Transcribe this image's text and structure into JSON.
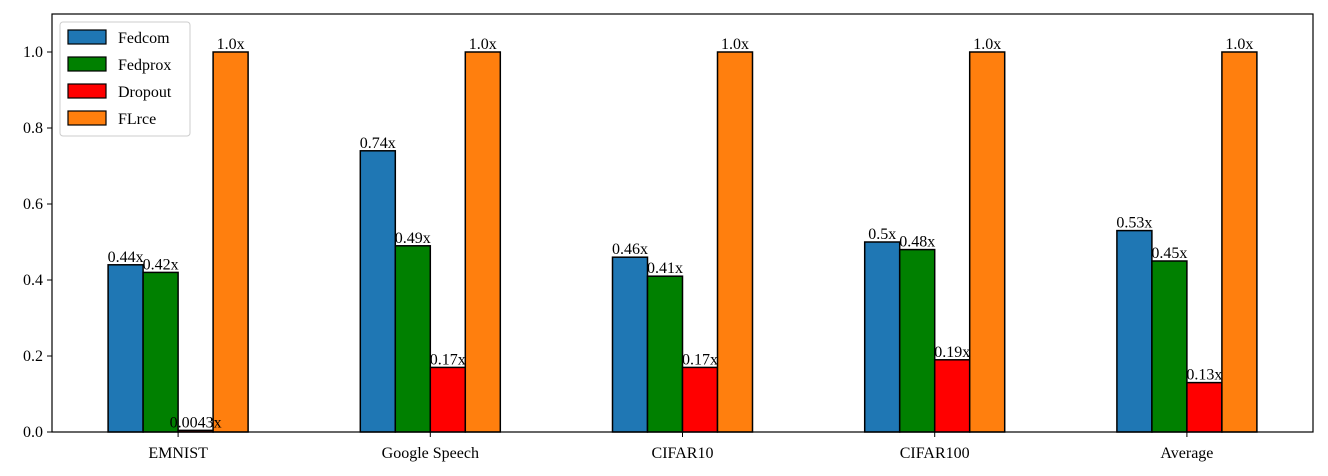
{
  "chart_data": {
    "type": "bar",
    "title": "",
    "xlabel": "",
    "ylabel": "",
    "ylim": [
      0,
      1.1
    ],
    "yticks": [
      0.0,
      0.2,
      0.4,
      0.6,
      0.8,
      1.0
    ],
    "ytick_labels": [
      "0.0",
      "0.2",
      "0.4",
      "0.6",
      "0.8",
      "1.0"
    ],
    "categories": [
      "EMNIST",
      "Google Speech",
      "CIFAR10",
      "CIFAR100",
      "Average"
    ],
    "legend_position": "top-left",
    "series": [
      {
        "name": "Fedcom",
        "color": "#1f77b4",
        "values": [
          0.44,
          0.74,
          0.46,
          0.5,
          0.53
        ],
        "labels": [
          "0.44x",
          "0.74x",
          "0.46x",
          "0.5x",
          "0.53x"
        ]
      },
      {
        "name": "Fedprox",
        "color": "#008000",
        "values": [
          0.42,
          0.49,
          0.41,
          0.48,
          0.45
        ],
        "labels": [
          "0.42x",
          "0.49x",
          "0.41x",
          "0.48x",
          "0.45x"
        ]
      },
      {
        "name": "Dropout",
        "color": "#ff0000",
        "values": [
          0.0043,
          0.17,
          0.17,
          0.19,
          0.13
        ],
        "labels": [
          "0.0043x",
          "0.17x",
          "0.17x",
          "0.19x",
          "0.13x"
        ]
      },
      {
        "name": "FLrce",
        "color": "#ff7f0e",
        "values": [
          1.0,
          1.0,
          1.0,
          1.0,
          1.0
        ],
        "labels": [
          "1.0x",
          "1.0x",
          "1.0x",
          "1.0x",
          "1.0x"
        ]
      }
    ]
  }
}
